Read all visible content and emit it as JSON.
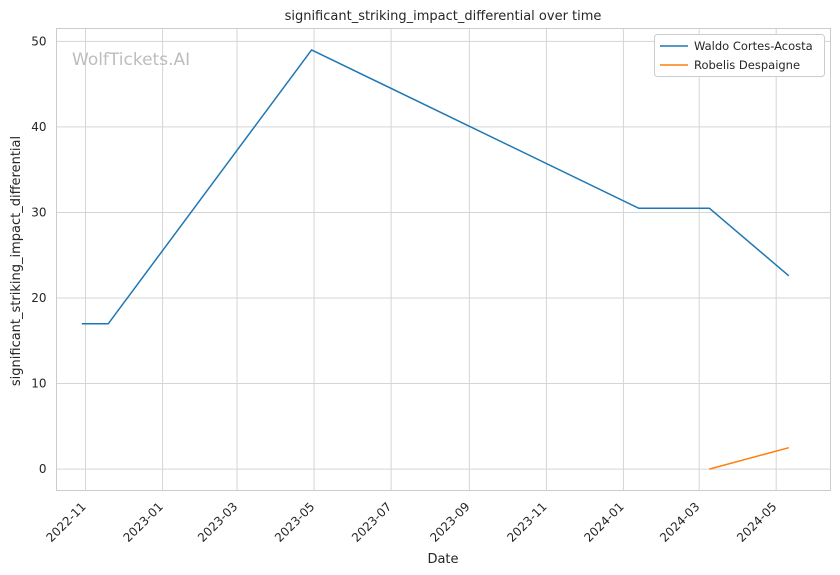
{
  "chart_data": {
    "type": "line",
    "title": "significant_striking_impact_differential over time",
    "xlabel": "Date",
    "ylabel": "significant_striking_impact_differential",
    "watermark": "WolfTickets.AI",
    "x_ticks": [
      "2022-11",
      "2023-01",
      "2023-03",
      "2023-05",
      "2023-07",
      "2023-09",
      "2023-11",
      "2024-01",
      "2024-03",
      "2024-05"
    ],
    "y_ticks": [
      0,
      10,
      20,
      30,
      40,
      50
    ],
    "xlim": [
      "2022-10-09",
      "2024-06-13"
    ],
    "ylim": [
      -2.5,
      51.5
    ],
    "grid": true,
    "legend_position": "top-right",
    "series": [
      {
        "name": "Waldo Cortes-Acosta",
        "color": "#1f77b4",
        "points": [
          {
            "x": "2022-10-29",
            "y": 17.0
          },
          {
            "x": "2022-11-19",
            "y": 17.0
          },
          {
            "x": "2023-04-29",
            "y": 49.0
          },
          {
            "x": "2024-01-13",
            "y": 30.5
          },
          {
            "x": "2024-03-09",
            "y": 30.5
          },
          {
            "x": "2024-05-11",
            "y": 22.6
          }
        ]
      },
      {
        "name": "Robelis Despaigne",
        "color": "#ff7f0e",
        "points": [
          {
            "x": "2024-03-09",
            "y": 0.0
          },
          {
            "x": "2024-05-11",
            "y": 2.5
          }
        ]
      }
    ]
  }
}
